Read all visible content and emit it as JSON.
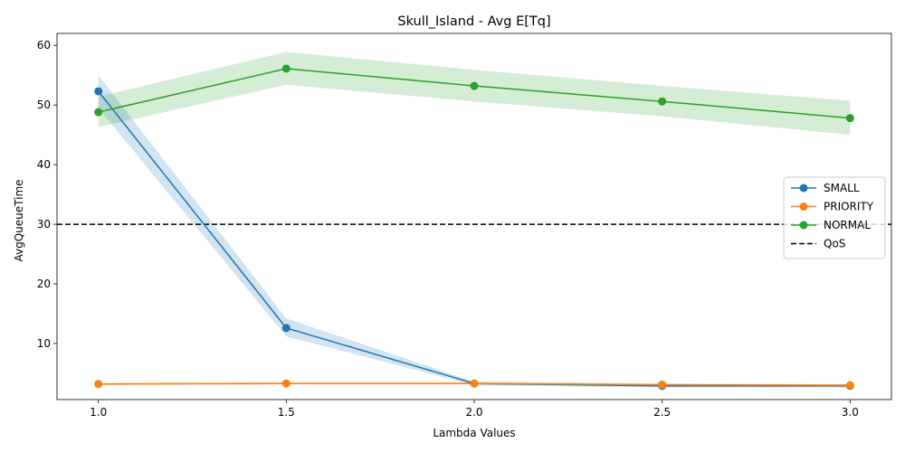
{
  "chart_data": {
    "type": "line",
    "title": "Skull_Island - Avg E[Tq]",
    "xlabel": "Lambda Values",
    "ylabel": "AvgQueueTime",
    "x": [
      1.0,
      1.5,
      2.0,
      2.5,
      3.0
    ],
    "x_tick_labels": [
      "1.0",
      "1.5",
      "2.0",
      "2.5",
      "3.0"
    ],
    "y_ticks": [
      10,
      20,
      30,
      40,
      50,
      60
    ],
    "y_tick_labels": [
      "10",
      "20",
      "30",
      "40",
      "50",
      "60"
    ],
    "xlim": [
      0.89,
      3.11
    ],
    "ylim": [
      0.6,
      62.0
    ],
    "grid": false,
    "legend_position": "center-right",
    "series": [
      {
        "name": "SMALL",
        "color": "#1f77b4",
        "values": [
          52.3,
          12.6,
          3.3,
          2.9,
          2.9
        ],
        "band_low": [
          49.5,
          11.2,
          3.0,
          2.6,
          2.6
        ],
        "band_high": [
          55.0,
          14.2,
          3.6,
          3.2,
          3.2
        ]
      },
      {
        "name": "PRIORITY",
        "color": "#ff7f0e",
        "values": [
          3.2,
          3.3,
          3.3,
          3.1,
          3.0
        ],
        "band_low": [
          3.0,
          3.1,
          3.1,
          2.9,
          2.8
        ],
        "band_high": [
          3.4,
          3.5,
          3.5,
          3.3,
          3.2
        ]
      },
      {
        "name": "NORMAL",
        "color": "#2ca02c",
        "values": [
          48.8,
          56.1,
          53.2,
          50.6,
          47.8
        ],
        "band_low": [
          46.3,
          53.4,
          50.6,
          48.1,
          45.0
        ],
        "band_high": [
          51.4,
          58.9,
          55.9,
          53.2,
          50.7
        ]
      }
    ],
    "reference_lines": [
      {
        "name": "QoS",
        "y": 30,
        "color": "#000000",
        "style": "dashed"
      }
    ]
  }
}
